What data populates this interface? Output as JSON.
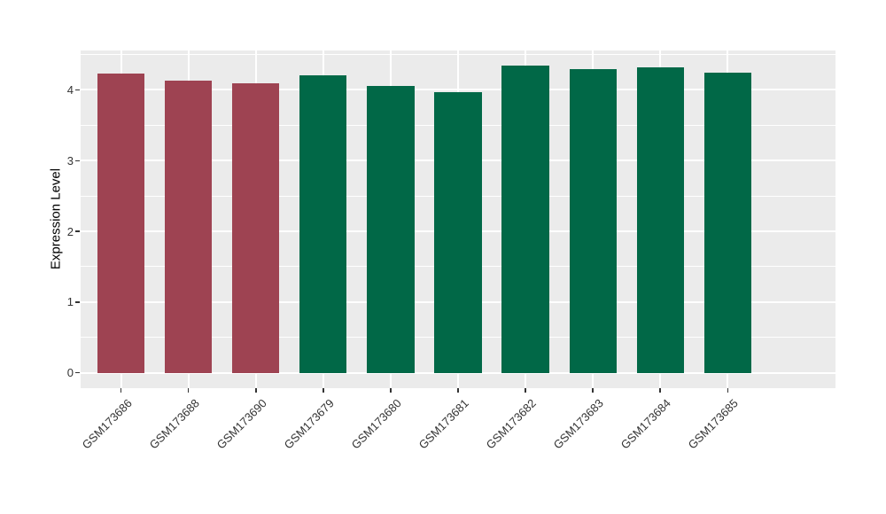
{
  "chart_data": {
    "type": "bar",
    "title": "",
    "xlabel": "",
    "ylabel": "Expression Level",
    "categories": [
      "GSM173686",
      "GSM173688",
      "GSM173690",
      "GSM173679",
      "GSM173680",
      "GSM173681",
      "GSM173682",
      "GSM173683",
      "GSM173684",
      "GSM173685"
    ],
    "values": [
      4.23,
      4.13,
      4.09,
      4.21,
      4.05,
      3.97,
      4.34,
      4.29,
      4.32,
      4.24
    ],
    "bar_colors": [
      "#9E4352",
      "#9E4352",
      "#9E4352",
      "#016847",
      "#016847",
      "#016847",
      "#016847",
      "#016847",
      "#016847",
      "#016847"
    ],
    "groups": [
      {
        "name": "group-maroon",
        "color": "#9E4352",
        "categories": [
          "GSM173686",
          "GSM173688",
          "GSM173690"
        ]
      },
      {
        "name": "group-green",
        "color": "#016847",
        "categories": [
          "GSM173679",
          "GSM173680",
          "GSM173681",
          "GSM173682",
          "GSM173683",
          "GSM173684",
          "GSM173685"
        ]
      }
    ],
    "yticks": [
      0,
      1,
      2,
      3,
      4
    ],
    "ylim": [
      -0.22,
      4.56
    ],
    "grid": "on",
    "legend": "none",
    "x_label_rotation_deg": 45,
    "panel_bg_color": "#EBEBEB",
    "grid_color": "#FFFFFF",
    "axis_text_color": "#333333"
  }
}
